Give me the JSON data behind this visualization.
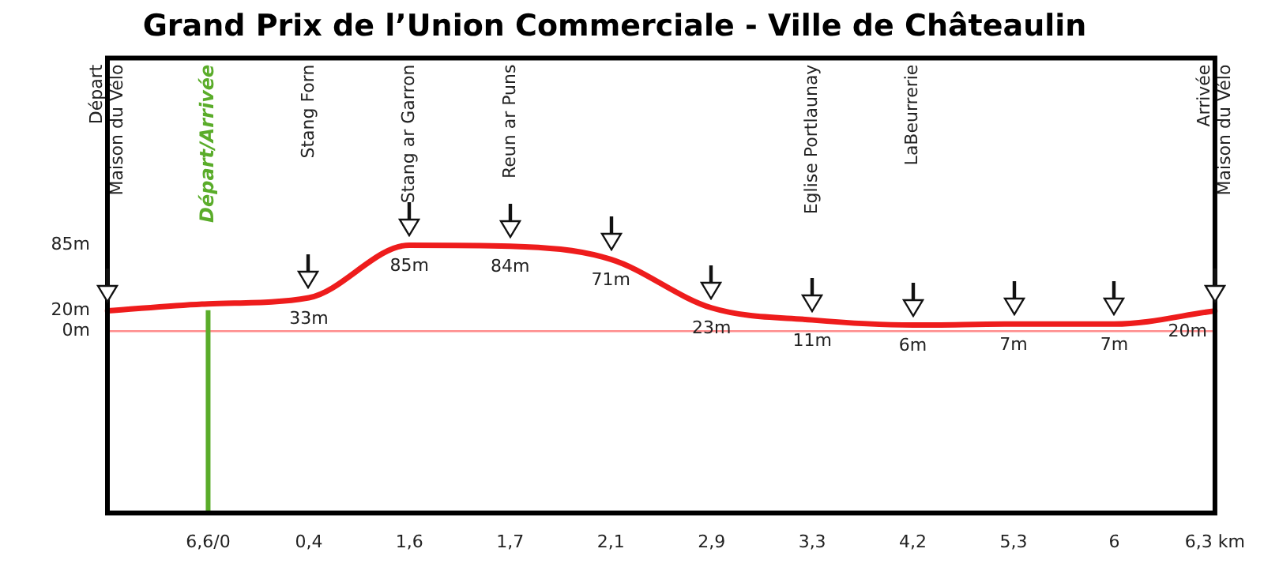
{
  "chart_data": {
    "type": "line",
    "title": "Grand Prix de l’Union Commerciale - Ville de Châteaulin",
    "categories": [
      null,
      "6,6/0",
      "0,4",
      "1,6",
      "1,7",
      "2,1",
      "2,9",
      "3,3",
      "4,2",
      "5,3",
      "6",
      "6,3 km"
    ],
    "values": [
      20,
      27,
      33,
      85,
      84,
      71,
      23,
      11,
      6,
      7,
      7,
      20
    ],
    "value_labels": [
      null,
      null,
      "33m",
      "85m",
      "84m",
      "71m",
      "23m",
      "11m",
      "6m",
      "7m",
      "7m",
      "20m"
    ],
    "color": "#ee1c1c",
    "ylim": [
      -180,
      270
    ],
    "yticks": [
      {
        "value": 0,
        "label": "0m"
      },
      {
        "value": 20,
        "label": "20m"
      },
      {
        "value": 85,
        "label": "85m"
      }
    ],
    "grid": false,
    "legend": false,
    "ref_lines": [
      {
        "axis": "y",
        "value": 0,
        "color": "#ff8c8c"
      },
      {
        "axis": "x",
        "value": "6,6/0",
        "label": "Départ/Arrivée",
        "color": "#5aac2a"
      }
    ],
    "annotations": [
      "Départ",
      "Maison du Vélo",
      "Stang Forn",
      "Stang ar Garron",
      "Reun ar Puns",
      "Eglise Portlaunay",
      "LaBeurrerie",
      "Arrivée",
      "Maison du Vélo"
    ]
  }
}
